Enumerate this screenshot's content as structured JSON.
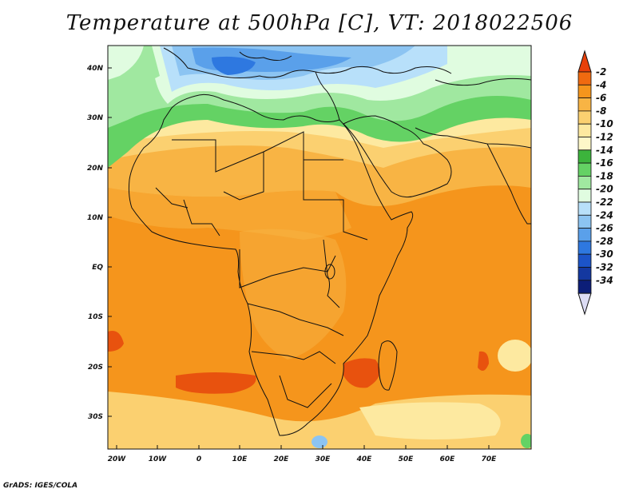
{
  "title": "Temperature at 500hPa [C], VT: 2018022506",
  "credit": "GrADS: IGES/COLA",
  "lat_labels": [
    "40N",
    "30N",
    "20N",
    "10N",
    "EQ",
    "10S",
    "20S",
    "30S"
  ],
  "lon_labels": [
    "20W",
    "10W",
    "0",
    "10E",
    "20E",
    "30E",
    "40E",
    "50E",
    "60E",
    "70E"
  ],
  "colorbar": {
    "labels": [
      "-2",
      "-4",
      "-6",
      "-8",
      "-10",
      "-12",
      "-14",
      "-16",
      "-18",
      "-20",
      "-22",
      "-24",
      "-26",
      "-28",
      "-30",
      "-32",
      "-34"
    ],
    "colors": [
      "#e8400a",
      "#f06a10",
      "#f5951c",
      "#f8b444",
      "#fbd070",
      "#fde9a0",
      "#fdf7c8",
      "#3cb43c",
      "#64d264",
      "#a0e8a0",
      "#e0fce0",
      "#b8e0fa",
      "#8cc4f2",
      "#5aa0ea",
      "#2e78e0",
      "#1c54c8",
      "#1438a0",
      "#0c1e78",
      "#dcdcf4"
    ]
  },
  "colors": {
    "ocean_south": "#f5951c",
    "sahara": "#f8b444",
    "mediterranean": "#5aa0ea",
    "north_green": "#64d264",
    "hot_spot": "#e8520e"
  }
}
